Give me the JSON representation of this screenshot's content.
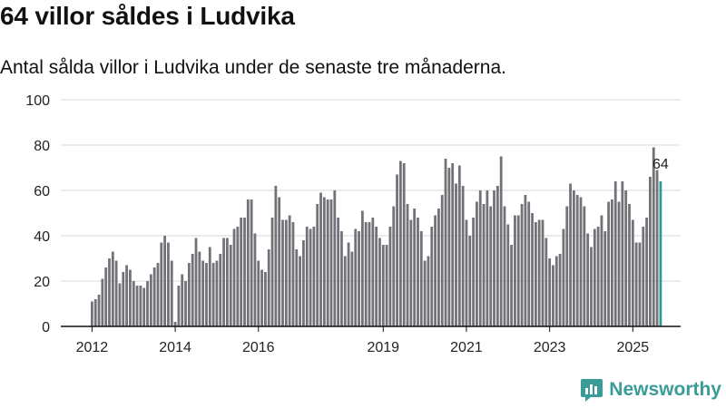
{
  "header": {
    "title": "64 villor såldes i Ludvika",
    "subtitle": "Antal sålda villor i Ludvika under de senaste tre månaderna."
  },
  "brand": {
    "name": "Newsworthy"
  },
  "colors": {
    "bar": "#737278",
    "highlight": "#2a9d8f",
    "grid": "#d9d9d9",
    "text": "#222222",
    "brand": "#3a9c96"
  },
  "chart_data": {
    "type": "bar",
    "title": "64 villor såldes i Ludvika",
    "xlabel": "",
    "ylabel": "",
    "ylim": [
      0,
      100
    ],
    "yticks": [
      0,
      20,
      40,
      60,
      80,
      100
    ],
    "start": {
      "year": 2012,
      "month": 1
    },
    "xticks": [
      {
        "label": "2012",
        "index": 0
      },
      {
        "label": "2014",
        "index": 24
      },
      {
        "label": "2016",
        "index": 48
      },
      {
        "label": "2019",
        "index": 84
      },
      {
        "label": "2021",
        "index": 108
      },
      {
        "label": "2023",
        "index": 132
      },
      {
        "label": "2025",
        "index": 156
      }
    ],
    "highlight_label": "64",
    "values": [
      11,
      12,
      14,
      21,
      26,
      30,
      33,
      29,
      19,
      24,
      27,
      25,
      20,
      18,
      18,
      17,
      20,
      23,
      26,
      28,
      37,
      40,
      37,
      29,
      2,
      18,
      23,
      20,
      28,
      32,
      39,
      33,
      29,
      28,
      35,
      28,
      29,
      32,
      39,
      39,
      36,
      43,
      44,
      48,
      48,
      56,
      56,
      41,
      29,
      25,
      24,
      34,
      48,
      62,
      57,
      47,
      47,
      49,
      46,
      34,
      31,
      38,
      44,
      43,
      44,
      54,
      59,
      57,
      56,
      56,
      60,
      48,
      42,
      31,
      37,
      33,
      43,
      42,
      51,
      46,
      46,
      48,
      44,
      39,
      36,
      36,
      44,
      53,
      67,
      73,
      72,
      54,
      47,
      52,
      48,
      42,
      29,
      31,
      44,
      49,
      52,
      58,
      74,
      70,
      72,
      63,
      71,
      62,
      47,
      40,
      48,
      55,
      60,
      54,
      60,
      53,
      60,
      62,
      75,
      53,
      45,
      36,
      49,
      49,
      54,
      58,
      55,
      50,
      46,
      47,
      47,
      39,
      30,
      27,
      31,
      32,
      43,
      53,
      63,
      60,
      58,
      57,
      53,
      41,
      35,
      43,
      44,
      49,
      42,
      55,
      56,
      64,
      55,
      64,
      60,
      54,
      47,
      37,
      37,
      44,
      48,
      66,
      79,
      69,
      64
    ]
  }
}
